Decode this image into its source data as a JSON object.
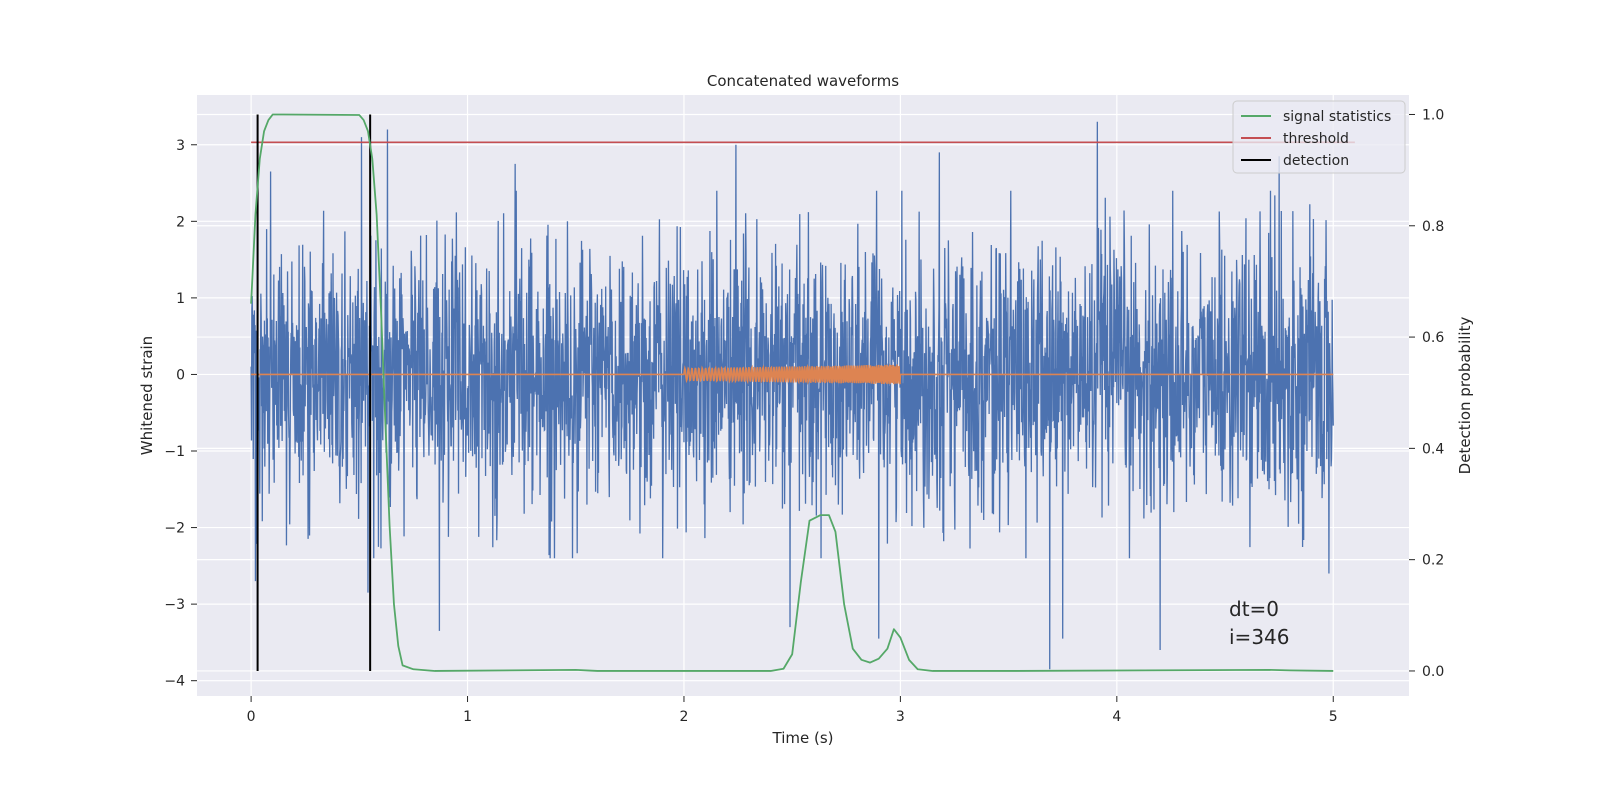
{
  "chart_data": {
    "type": "line",
    "title": "Concatenated waveforms",
    "xlabel": "Time (s)",
    "ylabel": "Whitened strain",
    "y2label": "Detection probability",
    "xlim": [
      -0.25,
      5.35
    ],
    "ylim": [
      -4.2,
      3.65
    ],
    "y2lim": [
      -0.045,
      1.035
    ],
    "xticks": [
      0,
      1,
      2,
      3,
      4,
      5
    ],
    "yticks": [
      -4,
      -3,
      -2,
      -1,
      0,
      1,
      2,
      3
    ],
    "y2ticks": [
      0.0,
      0.2,
      0.4,
      0.6,
      0.8,
      1.0
    ],
    "xtick_labels": [
      "0",
      "1",
      "2",
      "3",
      "4",
      "5"
    ],
    "ytick_labels": [
      "−4",
      "−3",
      "−2",
      "−1",
      "0",
      "1",
      "2",
      "3"
    ],
    "y2tick_labels": [
      "0.0",
      "0.2",
      "0.4",
      "0.6",
      "0.8",
      "1.0"
    ],
    "grid": true,
    "legend_position": "top-right",
    "legend": [
      {
        "label": "signal statistics",
        "color": "#55a868"
      },
      {
        "label": "threshold",
        "color": "#c44e52"
      },
      {
        "label": "detection",
        "color": "#000000"
      }
    ],
    "series": [
      {
        "name": "whitened strain (noise)",
        "axis": "left",
        "color": "#4c72b0",
        "x_range": [
          0,
          5
        ],
        "typical_range": [
          -1.0,
          1.1
        ],
        "peaks": [
          {
            "x": 0.09,
            "y": 2.65
          },
          {
            "x": 0.51,
            "y": 3.1
          },
          {
            "x": 0.63,
            "y": 3.2
          },
          {
            "x": 1.22,
            "y": 2.75
          },
          {
            "x": 2.24,
            "y": 3.0
          },
          {
            "x": 3.18,
            "y": 2.9
          },
          {
            "x": 3.91,
            "y": 3.3
          },
          {
            "x": 4.75,
            "y": 2.85
          }
        ],
        "troughs": [
          {
            "x": 0.02,
            "y": -2.7
          },
          {
            "x": 0.54,
            "y": -2.85
          },
          {
            "x": 0.87,
            "y": -3.35
          },
          {
            "x": 2.49,
            "y": -3.3
          },
          {
            "x": 2.9,
            "y": -3.45
          },
          {
            "x": 3.69,
            "y": -3.85
          },
          {
            "x": 3.75,
            "y": -3.45
          },
          {
            "x": 4.2,
            "y": -3.6
          },
          {
            "x": 4.98,
            "y": -2.6
          }
        ]
      },
      {
        "name": "injected waveform",
        "axis": "left",
        "color": "#dd8452",
        "x_range": [
          0,
          5
        ],
        "chirp_interval": [
          2.0,
          3.0
        ],
        "chirp_amplitude": [
          0.08,
          0.13
        ]
      },
      {
        "name": "signal statistics",
        "axis": "right",
        "color": "#55a868",
        "x": [
          0.0,
          0.02,
          0.04,
          0.06,
          0.08,
          0.1,
          0.12,
          0.15,
          0.5,
          0.52,
          0.54,
          0.56,
          0.58,
          0.6,
          0.62,
          0.64,
          0.66,
          0.68,
          0.7,
          0.75,
          0.85,
          1.5,
          1.6,
          2.4,
          2.46,
          2.5,
          2.54,
          2.58,
          2.63,
          2.67,
          2.7,
          2.74,
          2.78,
          2.82,
          2.86,
          2.9,
          2.94,
          2.97,
          3.0,
          3.04,
          3.08,
          3.15,
          3.5,
          4.7,
          4.8,
          5.0
        ],
        "values": [
          0.66,
          0.82,
          0.92,
          0.97,
          0.99,
          1.0,
          1.0,
          1.0,
          0.999,
          0.99,
          0.97,
          0.92,
          0.82,
          0.65,
          0.45,
          0.26,
          0.12,
          0.045,
          0.01,
          0.003,
          0.0,
          0.002,
          0.0,
          0.0,
          0.004,
          0.03,
          0.16,
          0.27,
          0.28,
          0.28,
          0.25,
          0.12,
          0.04,
          0.02,
          0.015,
          0.022,
          0.04,
          0.075,
          0.06,
          0.02,
          0.003,
          0.0,
          0.0,
          0.002,
          0.001,
          0.0
        ]
      },
      {
        "name": "threshold",
        "axis": "right",
        "color": "#c44e52",
        "x": [
          0,
          5.1
        ],
        "values": [
          0.95,
          0.95
        ]
      },
      {
        "name": "detection",
        "axis": "right",
        "color": "#000000",
        "vertical_lines": [
          0.03,
          0.55
        ],
        "span": [
          0.0,
          1.0
        ]
      }
    ],
    "annotations": [
      "dt=0",
      "i=346"
    ]
  }
}
